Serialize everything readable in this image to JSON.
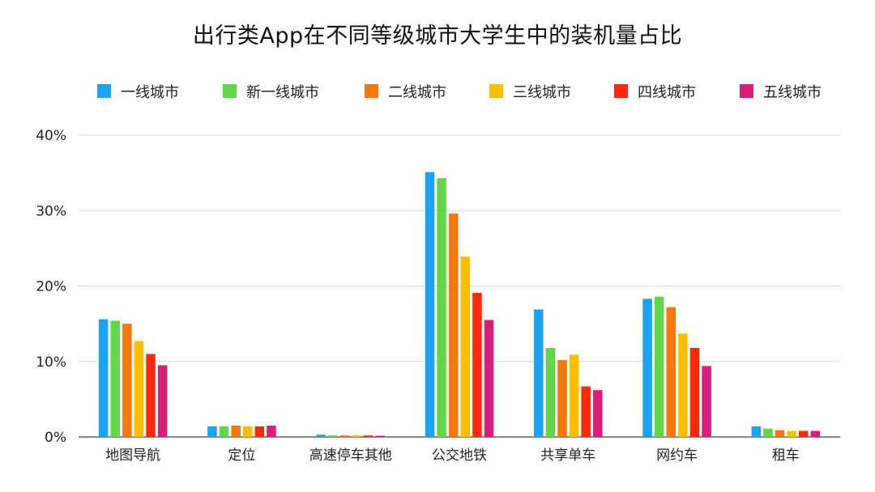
{
  "chart_data": {
    "type": "bar",
    "title": "出行类App在不同等级城市大学生中的装机量占比",
    "xlabel": "",
    "ylabel": "",
    "ylim": [
      0,
      40
    ],
    "y_ticks": [
      "0%",
      "10%",
      "20%",
      "30%",
      "40%"
    ],
    "y_tick_values": [
      0,
      10,
      20,
      30,
      40
    ],
    "grid": true,
    "legend_position": "top",
    "categories": [
      "地图导航",
      "定位",
      "高速停车其他",
      "公交地铁",
      "共享单车",
      "网约车",
      "租车"
    ],
    "series": [
      {
        "name": "一线城市",
        "color": "#1AA3F0",
        "values": [
          15.6,
          1.4,
          0.3,
          35.1,
          16.9,
          18.3,
          1.4
        ]
      },
      {
        "name": "新一线城市",
        "color": "#63D64A",
        "values": [
          15.4,
          1.4,
          0.2,
          34.3,
          11.8,
          18.6,
          1.1
        ]
      },
      {
        "name": "二线城市",
        "color": "#F5780A",
        "values": [
          15.0,
          1.5,
          0.2,
          29.6,
          10.2,
          17.2,
          0.9
        ]
      },
      {
        "name": "三线城市",
        "color": "#FFBE00",
        "values": [
          12.7,
          1.4,
          0.2,
          23.9,
          10.9,
          13.7,
          0.8
        ]
      },
      {
        "name": "四线城市",
        "color": "#FF2A0E",
        "values": [
          11.0,
          1.4,
          0.2,
          19.1,
          6.7,
          11.8,
          0.8
        ]
      },
      {
        "name": "五线城市",
        "color": "#D81E78",
        "values": [
          9.5,
          1.5,
          0.1,
          15.5,
          6.2,
          9.4,
          0.8
        ]
      }
    ]
  }
}
